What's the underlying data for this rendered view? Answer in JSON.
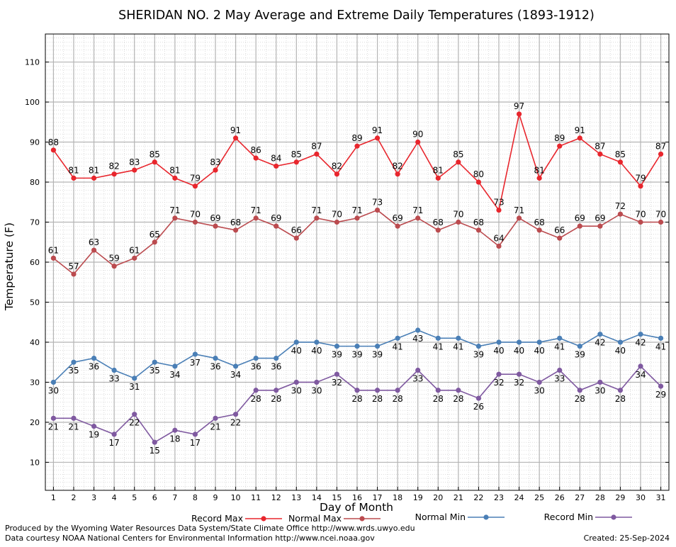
{
  "chart_data": {
    "type": "line",
    "title": "SHERIDAN NO. 2 May Average and Extreme Daily Temperatures (1893-1912)",
    "xlabel": "Day of Month",
    "ylabel": "Temperature (F)",
    "x": [
      1,
      2,
      3,
      4,
      5,
      6,
      7,
      8,
      9,
      10,
      11,
      12,
      13,
      14,
      15,
      16,
      17,
      18,
      19,
      20,
      21,
      22,
      23,
      24,
      25,
      26,
      27,
      28,
      29,
      30,
      31
    ],
    "xlim": [
      0.6,
      31.4
    ],
    "ylim": [
      3,
      117
    ],
    "yticks": [
      10,
      20,
      30,
      40,
      50,
      60,
      70,
      80,
      90,
      100,
      110
    ],
    "grid": true,
    "legend_position": "bottom",
    "series": [
      {
        "name": "Record Max",
        "color": "#e8262d",
        "label_pos": "above",
        "values": [
          88,
          81,
          81,
          82,
          83,
          85,
          81,
          79,
          83,
          91,
          86,
          84,
          85,
          87,
          82,
          89,
          91,
          82,
          90,
          81,
          85,
          80,
          73,
          97,
          81,
          89,
          91,
          87,
          85,
          79,
          87
        ]
      },
      {
        "name": "Normal Max",
        "color": "#bb4b4f",
        "label_pos": "above",
        "values": [
          61,
          57,
          63,
          59,
          61,
          65,
          71,
          70,
          69,
          68,
          71,
          69,
          66,
          71,
          70,
          71,
          73,
          69,
          71,
          68,
          70,
          68,
          64,
          71,
          68,
          66,
          69,
          69,
          72,
          70,
          70
        ]
      },
      {
        "name": "Normal Min",
        "color": "#4a7fb6",
        "label_pos": "below",
        "values": [
          30,
          35,
          36,
          33,
          31,
          35,
          34,
          37,
          36,
          34,
          36,
          36,
          40,
          40,
          39,
          39,
          39,
          41,
          43,
          41,
          41,
          39,
          40,
          40,
          40,
          41,
          39,
          42,
          40,
          42,
          41
        ]
      },
      {
        "name": "Record Min",
        "color": "#7f59a0",
        "label_pos": "below",
        "values": [
          21,
          21,
          19,
          17,
          22,
          15,
          18,
          17,
          21,
          22,
          28,
          28,
          30,
          30,
          32,
          28,
          28,
          28,
          33,
          28,
          28,
          26,
          32,
          32,
          30,
          33,
          28,
          30,
          28,
          34,
          29
        ]
      }
    ]
  },
  "footer": {
    "credit_line1": "Produced by the Wyoming Water Resources Data System/State Climate Office http://www.wrds.uwyo.edu",
    "credit_line2": "Data courtesy NOAA National Centers for Environmental Information http://www.ncei.noaa.gov",
    "created": "Created:  25-Sep-2024"
  }
}
